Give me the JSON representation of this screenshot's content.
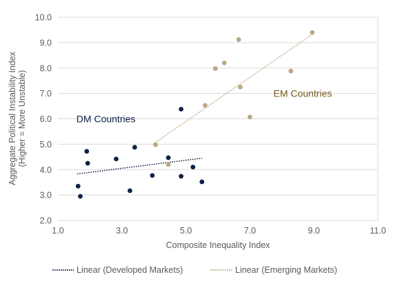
{
  "colors": {
    "dm": "#0f2147",
    "em": "#bda886",
    "em_label": "#7a5a1a",
    "grid": "#d9d9d9",
    "axis_text": "#595959"
  },
  "chart_data": {
    "type": "scatter",
    "title": "",
    "xlabel": "Composite Inequality Index",
    "ylabel": "Aggregate Political Instability Index",
    "ylabel_sub": "(Higher = More Unstable)",
    "xlim": [
      1.0,
      11.0
    ],
    "ylim": [
      2.0,
      10.0
    ],
    "x_ticks": [
      1.0,
      3.0,
      5.0,
      7.0,
      9.0,
      11.0
    ],
    "y_ticks": [
      2.0,
      3.0,
      4.0,
      5.0,
      6.0,
      7.0,
      8.0,
      9.0,
      10.0
    ],
    "x_tick_labels": [
      "1.0",
      "3.0",
      "5.0",
      "7.0",
      "9.0",
      "11.0"
    ],
    "y_tick_labels": [
      "2.0",
      "3.0",
      "4.0",
      "5.0",
      "6.0",
      "7.0",
      "8.0",
      "9.0",
      "10.0"
    ],
    "grid": "horizontal",
    "legend_position": "bottom",
    "series": [
      {
        "name": "DM Countries",
        "color": "#0f2147",
        "points": [
          {
            "x": 1.63,
            "y": 3.35
          },
          {
            "x": 1.7,
            "y": 2.95
          },
          {
            "x": 1.9,
            "y": 4.72
          },
          {
            "x": 1.93,
            "y": 4.25
          },
          {
            "x": 2.82,
            "y": 4.42
          },
          {
            "x": 3.25,
            "y": 3.17
          },
          {
            "x": 3.4,
            "y": 4.88
          },
          {
            "x": 3.95,
            "y": 3.77
          },
          {
            "x": 4.45,
            "y": 4.47
          },
          {
            "x": 4.85,
            "y": 6.38
          },
          {
            "x": 4.85,
            "y": 3.74
          },
          {
            "x": 5.22,
            "y": 4.1
          },
          {
            "x": 5.5,
            "y": 3.52
          }
        ]
      },
      {
        "name": "EM Countries",
        "color": "#bda886",
        "points": [
          {
            "x": 4.05,
            "y": 4.98
          },
          {
            "x": 4.45,
            "y": 4.2
          },
          {
            "x": 5.6,
            "y": 6.53
          },
          {
            "x": 5.92,
            "y": 7.98
          },
          {
            "x": 6.2,
            "y": 8.2
          },
          {
            "x": 6.65,
            "y": 9.12
          },
          {
            "x": 6.7,
            "y": 7.25
          },
          {
            "x": 7.0,
            "y": 6.07
          },
          {
            "x": 8.28,
            "y": 7.88
          },
          {
            "x": 8.95,
            "y": 9.4
          }
        ]
      }
    ],
    "trendlines": [
      {
        "name": "Linear (Developed Markets)",
        "color": "#0f2147",
        "x": [
          1.6,
          5.5
        ],
        "y": [
          3.83,
          4.45
        ]
      },
      {
        "name": "Linear (Emerging Markets)",
        "color": "#bda886",
        "x": [
          4.0,
          9.0
        ],
        "y": [
          5.03,
          9.37
        ]
      }
    ],
    "annotations": [
      {
        "text": "DM Countries",
        "x": 2.5,
        "y": 6.0,
        "color": "#0f2147"
      },
      {
        "text": "EM Countries",
        "x": 8.65,
        "y": 7.0,
        "color": "#7a5a1a"
      }
    ]
  }
}
